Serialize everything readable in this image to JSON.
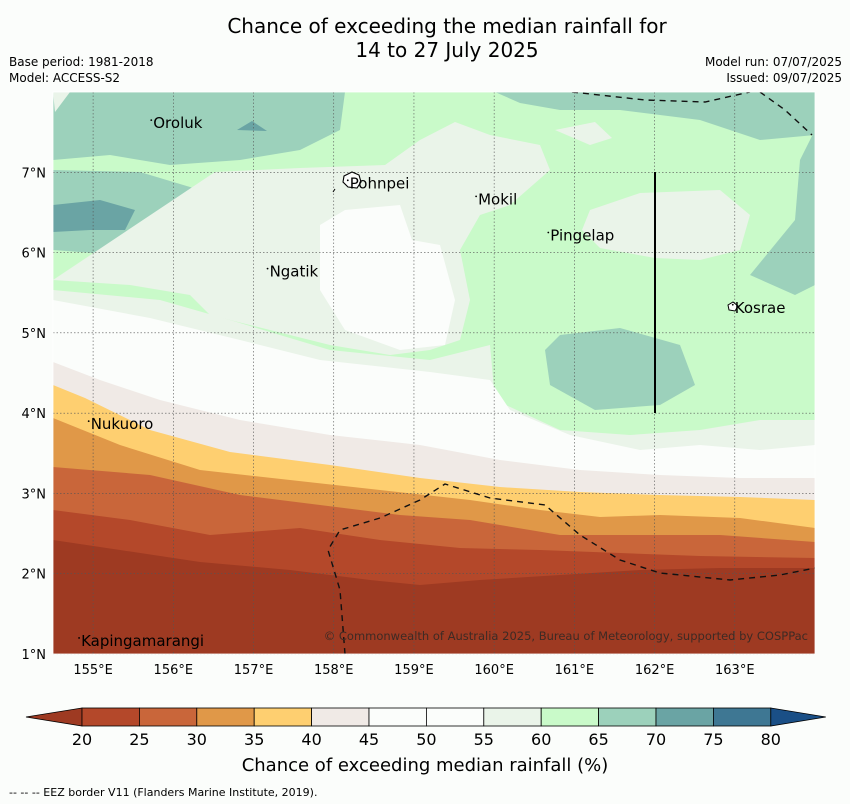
{
  "title": {
    "line1": "Chance of exceeding the median rainfall for",
    "line2": "14 to 27 July 2025"
  },
  "meta": {
    "base_period": "Base period: 1981-2018",
    "model": "Model: ACCESS-S2",
    "model_run": "Model run: 07/07/2025",
    "issued": "Issued: 09/07/2025"
  },
  "map": {
    "lon_range": [
      154.5,
      164
    ],
    "lat_range": [
      1,
      8
    ],
    "x_ticks": [
      "155°E",
      "156°E",
      "157°E",
      "158°E",
      "159°E",
      "160°E",
      "161°E",
      "162°E",
      "163°E"
    ],
    "y_ticks": [
      "1°N",
      "2°N",
      "3°N",
      "4°N",
      "5°N",
      "6°N",
      "7°N"
    ],
    "places": [
      {
        "name": "Oroluk",
        "lon": 155.75,
        "lat": 7.6
      },
      {
        "name": "Pohnpei",
        "lon": 158.2,
        "lat": 6.85
      },
      {
        "name": "Mokil",
        "lon": 159.8,
        "lat": 6.65
      },
      {
        "name": "Pingelap",
        "lon": 160.7,
        "lat": 6.2
      },
      {
        "name": "Ngatik",
        "lon": 157.2,
        "lat": 5.75
      },
      {
        "name": "Kosrae",
        "lon": 163.0,
        "lat": 5.3
      },
      {
        "name": "Nukuoro",
        "lon": 154.97,
        "lat": 3.85
      },
      {
        "name": "Kapingamarangi",
        "lon": 154.85,
        "lat": 1.15
      }
    ],
    "copyright": "© Commonwealth of Australia 2025, Bureau of Meteorology, supported by COSPPac",
    "grid": true
  },
  "colorbar": {
    "title": "Chance of exceeding median rainfall (%)",
    "ticks": [
      "20",
      "25",
      "30",
      "35",
      "40",
      "45",
      "50",
      "55",
      "60",
      "65",
      "70",
      "75",
      "80"
    ],
    "colors": [
      "#9e3a22",
      "#b4482a",
      "#c9663a",
      "#e09848",
      "#fecf70",
      "#f0eae6",
      "#fbfdfb",
      "#fbfdfb",
      "#eaf4e9",
      "#c9fac9",
      "#9cd1bb",
      "#6aa4a4",
      "#3e7793",
      "#1a4f86"
    ]
  },
  "footer": "-- -- -- EEZ border V11 (Flanders Marine Institute, 2019)."
}
